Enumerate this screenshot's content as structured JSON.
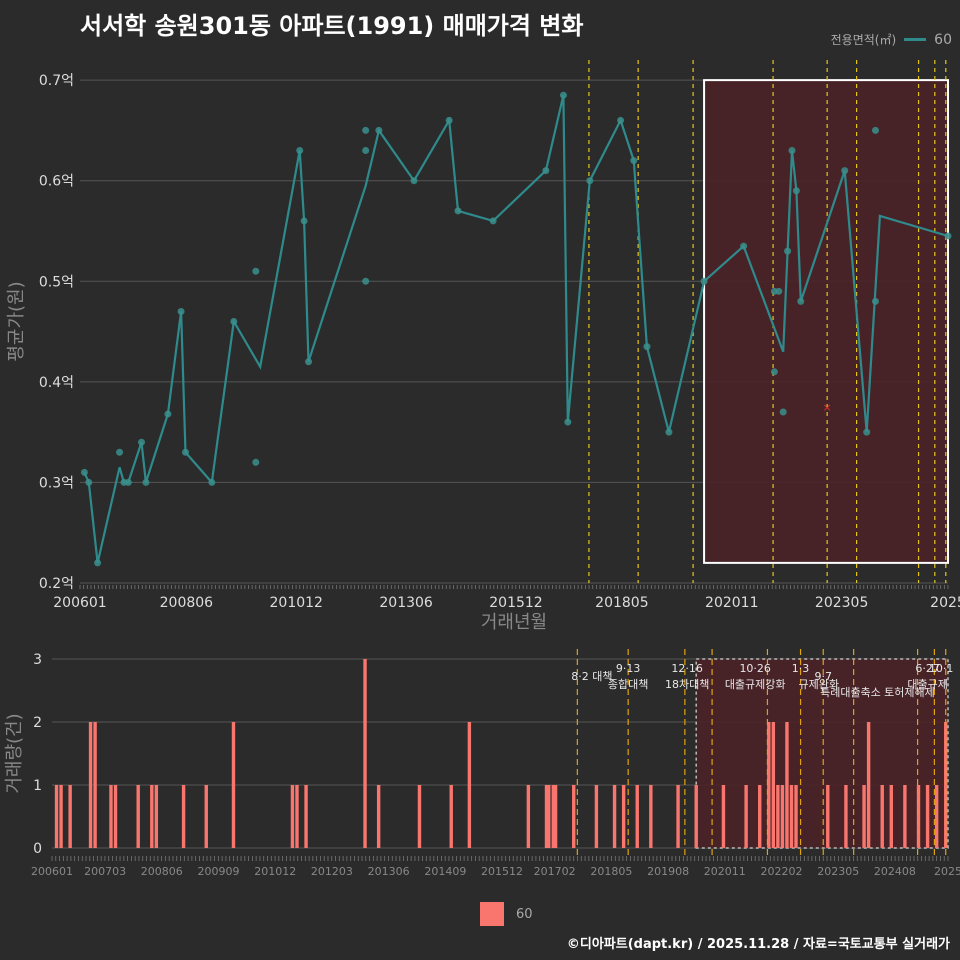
{
  "title": "서서학 송원301동 아파트(1991) 매매가격 변화",
  "legend": {
    "title": "전용면적(㎡)",
    "series_label": "60",
    "bar_label": "60"
  },
  "footer": "©디아파트(dapt.kr) / 2025.11.28 / 자료=국토교통부 실거래가",
  "colors": {
    "background": "#2b2b2b",
    "line": "#2f8a8c",
    "point": "#3a8f8c",
    "bar": "#f8766d",
    "policy_line": "#e6c619",
    "highlight_fill": "#4a2228",
    "highlight_border": "#ffffff"
  },
  "chart_data": [
    {
      "type": "line",
      "title": "서서학 송원301동 아파트(1991) 매매가격 변화",
      "xlabel": "거래년월",
      "ylabel": "평균가(원)",
      "ylim": [
        0.2,
        0.72
      ],
      "xlim": [
        2006.0,
        2025.75
      ],
      "y_ticks": [
        {
          "v": 0.2,
          "label": "0.2억"
        },
        {
          "v": 0.3,
          "label": "0.3억"
        },
        {
          "v": 0.4,
          "label": "0.4억"
        },
        {
          "v": 0.5,
          "label": "0.5억"
        },
        {
          "v": 0.6,
          "label": "0.6억"
        },
        {
          "v": 0.7,
          "label": "0.7억"
        }
      ],
      "x_ticks": [
        {
          "v": 2006.0,
          "label": "200601"
        },
        {
          "v": 2008.42,
          "label": "200806"
        },
        {
          "v": 2010.92,
          "label": "201012"
        },
        {
          "v": 2013.42,
          "label": "201306"
        },
        {
          "v": 2015.92,
          "label": "201512"
        },
        {
          "v": 2018.33,
          "label": "201805"
        },
        {
          "v": 2020.83,
          "label": "202011"
        },
        {
          "v": 2023.33,
          "label": "202305"
        },
        {
          "v": 2025.75,
          "label": "2025"
        }
      ],
      "series": [
        {
          "name": "60",
          "points": [
            [
              2006.1,
              0.31
            ],
            [
              2006.2,
              0.3
            ],
            [
              2006.4,
              0.22
            ],
            [
              2006.9,
              0.315
            ],
            [
              2007.0,
              0.3
            ],
            [
              2007.1,
              0.3
            ],
            [
              2007.4,
              0.34
            ],
            [
              2007.5,
              0.3
            ],
            [
              2008.0,
              0.368
            ],
            [
              2008.3,
              0.47
            ],
            [
              2008.4,
              0.33
            ],
            [
              2009.0,
              0.3
            ],
            [
              2009.5,
              0.46
            ],
            [
              2010.1,
              0.415
            ],
            [
              2011.0,
              0.63
            ],
            [
              2011.1,
              0.56
            ],
            [
              2011.2,
              0.42
            ],
            [
              2012.5,
              0.595
            ],
            [
              2012.8,
              0.65
            ],
            [
              2013.6,
              0.6
            ],
            [
              2014.4,
              0.66
            ],
            [
              2014.6,
              0.57
            ],
            [
              2015.4,
              0.56
            ],
            [
              2016.6,
              0.61
            ],
            [
              2017.0,
              0.685
            ],
            [
              2017.1,
              0.36
            ],
            [
              2017.6,
              0.6
            ],
            [
              2018.3,
              0.66
            ],
            [
              2018.6,
              0.62
            ],
            [
              2018.9,
              0.435
            ],
            [
              2019.4,
              0.35
            ],
            [
              2020.2,
              0.5
            ],
            [
              2021.1,
              0.535
            ],
            [
              2022.0,
              0.43
            ],
            [
              2022.2,
              0.63
            ],
            [
              2022.3,
              0.59
            ],
            [
              2022.4,
              0.48
            ],
            [
              2023.4,
              0.61
            ],
            [
              2023.9,
              0.35
            ],
            [
              2024.2,
              0.565
            ],
            [
              2025.75,
              0.545
            ]
          ]
        },
        {
          "name": "60-scatter",
          "points": [
            [
              2006.1,
              0.31
            ],
            [
              2006.2,
              0.3
            ],
            [
              2006.4,
              0.22
            ],
            [
              2006.9,
              0.33
            ],
            [
              2007.0,
              0.3
            ],
            [
              2007.1,
              0.3
            ],
            [
              2007.4,
              0.34
            ],
            [
              2007.5,
              0.3
            ],
            [
              2008.0,
              0.368
            ],
            [
              2008.3,
              0.47
            ],
            [
              2008.4,
              0.33
            ],
            [
              2009.0,
              0.3
            ],
            [
              2009.5,
              0.46
            ],
            [
              2010.0,
              0.51
            ],
            [
              2010.0,
              0.32
            ],
            [
              2011.0,
              0.63
            ],
            [
              2011.1,
              0.56
            ],
            [
              2011.2,
              0.42
            ],
            [
              2012.5,
              0.65
            ],
            [
              2012.5,
              0.63
            ],
            [
              2012.5,
              0.5
            ],
            [
              2012.8,
              0.65
            ],
            [
              2013.6,
              0.6
            ],
            [
              2014.4,
              0.66
            ],
            [
              2014.6,
              0.57
            ],
            [
              2015.4,
              0.56
            ],
            [
              2016.6,
              0.61
            ],
            [
              2017.0,
              0.685
            ],
            [
              2017.1,
              0.36
            ],
            [
              2017.6,
              0.6
            ],
            [
              2018.3,
              0.66
            ],
            [
              2018.6,
              0.62
            ],
            [
              2018.9,
              0.435
            ],
            [
              2019.4,
              0.35
            ],
            [
              2020.2,
              0.5
            ],
            [
              2021.1,
              0.535
            ],
            [
              2021.8,
              0.49
            ],
            [
              2021.8,
              0.41
            ],
            [
              2021.9,
              0.49
            ],
            [
              2022.0,
              0.37
            ],
            [
              2022.1,
              0.53
            ],
            [
              2022.2,
              0.63
            ],
            [
              2022.3,
              0.59
            ],
            [
              2022.4,
              0.48
            ],
            [
              2023.4,
              0.61
            ],
            [
              2023.9,
              0.35
            ],
            [
              2024.1,
              0.65
            ],
            [
              2024.1,
              0.48
            ],
            [
              2025.75,
              0.545
            ]
          ]
        }
      ],
      "marker_x": {
        "x": 2023.0,
        "y": 0.375
      },
      "highlight_range": {
        "x": [
          2020.2,
          2025.75
        ],
        "y": [
          0.22,
          0.7
        ]
      },
      "policy_lines": [
        2017.58,
        2018.7,
        2019.95,
        2021.77,
        2023.0,
        2023.67,
        2025.08,
        2025.45,
        2025.7
      ]
    },
    {
      "type": "bar",
      "xlabel": "",
      "ylabel": "거래량(건)",
      "ylim": [
        0,
        3
      ],
      "xlim": [
        2006.0,
        2025.75
      ],
      "y_ticks": [
        0,
        1,
        2,
        3
      ],
      "x_ticks": [
        {
          "v": 2006.0,
          "label": "200601"
        },
        {
          "v": 2007.17,
          "label": "200703"
        },
        {
          "v": 2008.42,
          "label": "200806"
        },
        {
          "v": 2009.67,
          "label": "200909"
        },
        {
          "v": 2010.92,
          "label": "201012"
        },
        {
          "v": 2012.17,
          "label": "201203"
        },
        {
          "v": 2013.42,
          "label": "201306"
        },
        {
          "v": 2014.67,
          "label": "201409"
        },
        {
          "v": 2015.92,
          "label": "201512"
        },
        {
          "v": 2017.08,
          "label": "201702"
        },
        {
          "v": 2018.33,
          "label": "201805"
        },
        {
          "v": 2019.58,
          "label": "201908"
        },
        {
          "v": 2020.83,
          "label": "202011"
        },
        {
          "v": 2022.08,
          "label": "202202"
        },
        {
          "v": 2023.33,
          "label": "202305"
        },
        {
          "v": 2024.58,
          "label": "202408"
        },
        {
          "v": 2025.75,
          "label": "2025"
        }
      ],
      "values": [
        [
          2006.1,
          1
        ],
        [
          2006.2,
          1
        ],
        [
          2006.4,
          1
        ],
        [
          2006.85,
          2
        ],
        [
          2006.95,
          2
        ],
        [
          2007.3,
          1
        ],
        [
          2007.4,
          1
        ],
        [
          2007.9,
          1
        ],
        [
          2008.2,
          1
        ],
        [
          2008.3,
          1
        ],
        [
          2008.9,
          1
        ],
        [
          2009.4,
          1
        ],
        [
          2010.0,
          2
        ],
        [
          2011.3,
          1
        ],
        [
          2011.4,
          1
        ],
        [
          2011.6,
          1
        ],
        [
          2012.9,
          3
        ],
        [
          2013.2,
          1
        ],
        [
          2014.1,
          1
        ],
        [
          2014.8,
          1
        ],
        [
          2015.2,
          2
        ],
        [
          2016.5,
          1
        ],
        [
          2016.9,
          1
        ],
        [
          2016.95,
          1
        ],
        [
          2017.05,
          1
        ],
        [
          2017.1,
          1
        ],
        [
          2017.5,
          1
        ],
        [
          2018.0,
          1
        ],
        [
          2018.4,
          1
        ],
        [
          2018.6,
          1
        ],
        [
          2018.9,
          1
        ],
        [
          2019.2,
          1
        ],
        [
          2019.8,
          1
        ],
        [
          2020.2,
          1
        ],
        [
          2020.8,
          1
        ],
        [
          2021.3,
          1
        ],
        [
          2021.6,
          1
        ],
        [
          2021.8,
          2
        ],
        [
          2021.9,
          2
        ],
        [
          2022.0,
          1
        ],
        [
          2022.1,
          1
        ],
        [
          2022.2,
          2
        ],
        [
          2022.3,
          1
        ],
        [
          2022.4,
          1
        ],
        [
          2023.1,
          1
        ],
        [
          2023.5,
          1
        ],
        [
          2023.9,
          1
        ],
        [
          2024.0,
          2
        ],
        [
          2024.3,
          1
        ],
        [
          2024.5,
          1
        ],
        [
          2024.8,
          1
        ],
        [
          2025.1,
          1
        ],
        [
          2025.3,
          1
        ],
        [
          2025.5,
          1
        ],
        [
          2025.7,
          2
        ]
      ],
      "highlight_range": {
        "x": [
          2020.2,
          2025.75
        ]
      },
      "policy_lines": [
        2017.58,
        2018.7,
        2019.95,
        2020.55,
        2021.77,
        2022.5,
        2023.0,
        2023.67,
        2025.08,
        2025.45,
        2025.7
      ],
      "annotations": [
        {
          "x": 2017.9,
          "row": 1,
          "text": "8·2 대책"
        },
        {
          "x": 2018.7,
          "row": 0,
          "text": "9·13"
        },
        {
          "x": 2018.7,
          "row": 2,
          "text": "종합대책"
        },
        {
          "x": 2020.0,
          "row": 0,
          "text": "12·16"
        },
        {
          "x": 2020.0,
          "row": 2,
          "text": "18차대책"
        },
        {
          "x": 2021.5,
          "row": 0,
          "text": "10·26"
        },
        {
          "x": 2021.5,
          "row": 2,
          "text": "대출규제강화"
        },
        {
          "x": 2022.5,
          "row": 0,
          "text": "1·3"
        },
        {
          "x": 2022.9,
          "row": 2,
          "text": "규제완화"
        },
        {
          "x": 2023.0,
          "row": 1,
          "text": "9·7"
        },
        {
          "x": 2023.6,
          "row": 3,
          "text": "특례대출축소"
        },
        {
          "x": 2024.9,
          "row": 3,
          "text": "토허제해제"
        },
        {
          "x": 2025.3,
          "row": 0,
          "text": "6·27"
        },
        {
          "x": 2025.6,
          "row": 0,
          "text": "10·1"
        },
        {
          "x": 2025.3,
          "row": 2,
          "text": "대출규제"
        }
      ]
    }
  ]
}
